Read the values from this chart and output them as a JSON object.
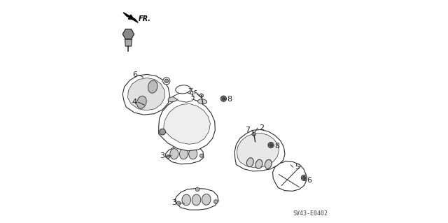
{
  "title": "",
  "diagram_code": "SV43-E0402",
  "bg_color": "#ffffff",
  "line_color": "#2a2a2a",
  "label_color": "#222222",
  "figsize": [
    6.4,
    3.19
  ],
  "dpi": 100
}
